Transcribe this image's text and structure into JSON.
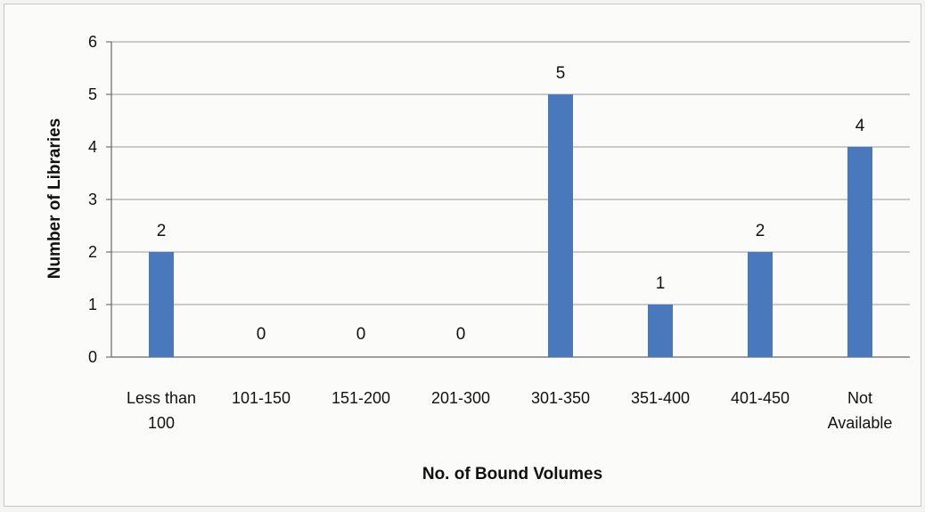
{
  "chart_data": {
    "type": "bar",
    "title": "",
    "xlabel": "No. of Bound Volumes",
    "ylabel": "Number of Libraries",
    "categories": [
      "Less than 100",
      "101-150",
      "151-200",
      "201-300",
      "301-350",
      "351-400",
      "401-450",
      "Not Available"
    ],
    "category_lines": [
      [
        "Less than",
        "100"
      ],
      [
        "101-150"
      ],
      [
        "151-200"
      ],
      [
        "201-300"
      ],
      [
        "301-350"
      ],
      [
        "351-400"
      ],
      [
        "401-450"
      ],
      [
        "Not",
        "Available"
      ]
    ],
    "values": [
      2,
      0,
      0,
      0,
      5,
      1,
      2,
      4
    ],
    "ylim": [
      0,
      6
    ],
    "yticks": [
      0,
      1,
      2,
      3,
      4,
      5,
      6
    ],
    "grid": true,
    "legend": "none",
    "bar_color": "#4a78bd",
    "grid_color": "#9a9a9a"
  }
}
